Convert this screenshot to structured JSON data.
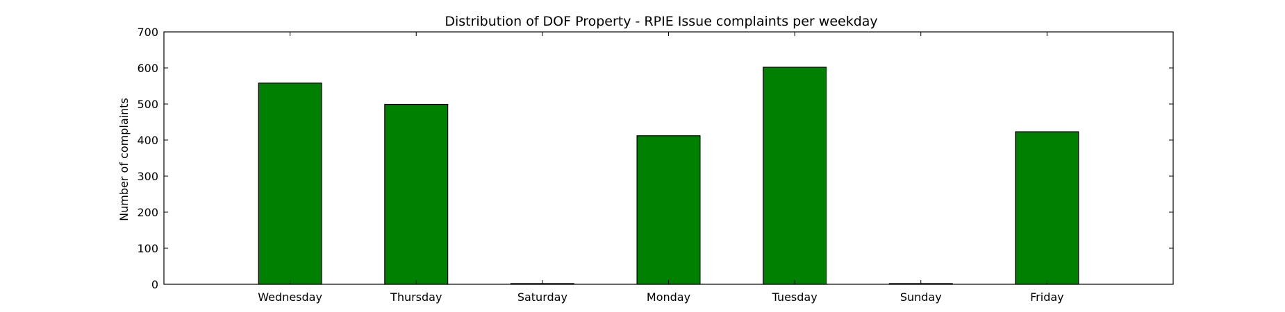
{
  "chart_data": {
    "type": "bar",
    "title": "Distribution of  DOF Property - RPIE Issue complaints per weekday",
    "xlabel": "",
    "ylabel": "Number of complaints",
    "categories": [
      "Wednesday",
      "Thursday",
      "Saturday",
      "Monday",
      "Tuesday",
      "Sunday",
      "Friday"
    ],
    "values": [
      558,
      499,
      2,
      412,
      602,
      2,
      423
    ],
    "ylim": [
      0,
      700
    ],
    "yticks": [
      0,
      100,
      200,
      300,
      400,
      500,
      600,
      700
    ],
    "grid": false,
    "colors": {
      "bar": "#008000",
      "edge": "#000000"
    }
  }
}
